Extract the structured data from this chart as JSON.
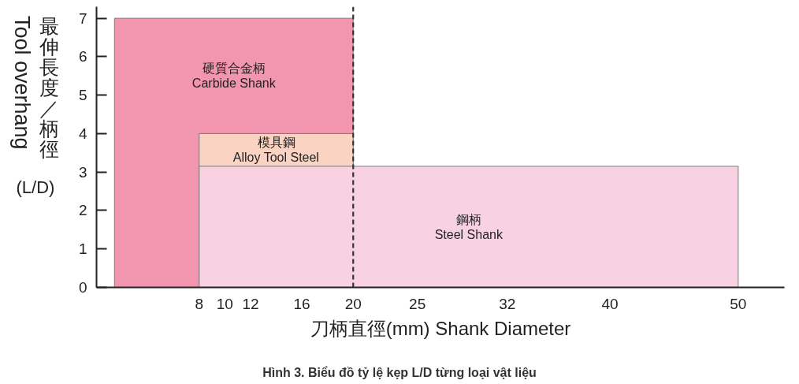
{
  "chart_data": {
    "type": "area",
    "xlabel": "刀柄直徑(mm) Shank Diameter",
    "ylabel": "最伸長度／柄徑\nTool overhang\n(L/D)",
    "annotations": [
      "Hình 3. Biểu đồ tỷ lệ kẹp L/D từng loại vật liệu"
    ],
    "series": [
      {
        "name": "硬質合金柄\nCarbide Shank",
        "color": "#f296af",
        "x": [
          1.4,
          20
        ],
        "values": [
          7,
          7
        ]
      },
      {
        "name": "模具鋼\nAlloy Tool Steel",
        "color": "#fbd3c3",
        "x": [
          8,
          20
        ],
        "values": [
          4,
          4
        ]
      },
      {
        "name": "鋼柄\nSteel Shank",
        "color": "#f8d1e3",
        "x": [
          8,
          50
        ],
        "values": [
          3.15,
          3.15
        ]
      }
    ],
    "xlim": [
      0,
      53.6
    ],
    "xticks": [
      8,
      10,
      12,
      16,
      20,
      25,
      32,
      40,
      50
    ],
    "ylim": [
      0,
      7.3
    ],
    "yticks": [
      0,
      1,
      2,
      3,
      4,
      5,
      6,
      7
    ],
    "ref_lines": [
      {
        "axis": "x",
        "value": 20,
        "line_style": "dashed",
        "color": "#333333"
      }
    ]
  }
}
